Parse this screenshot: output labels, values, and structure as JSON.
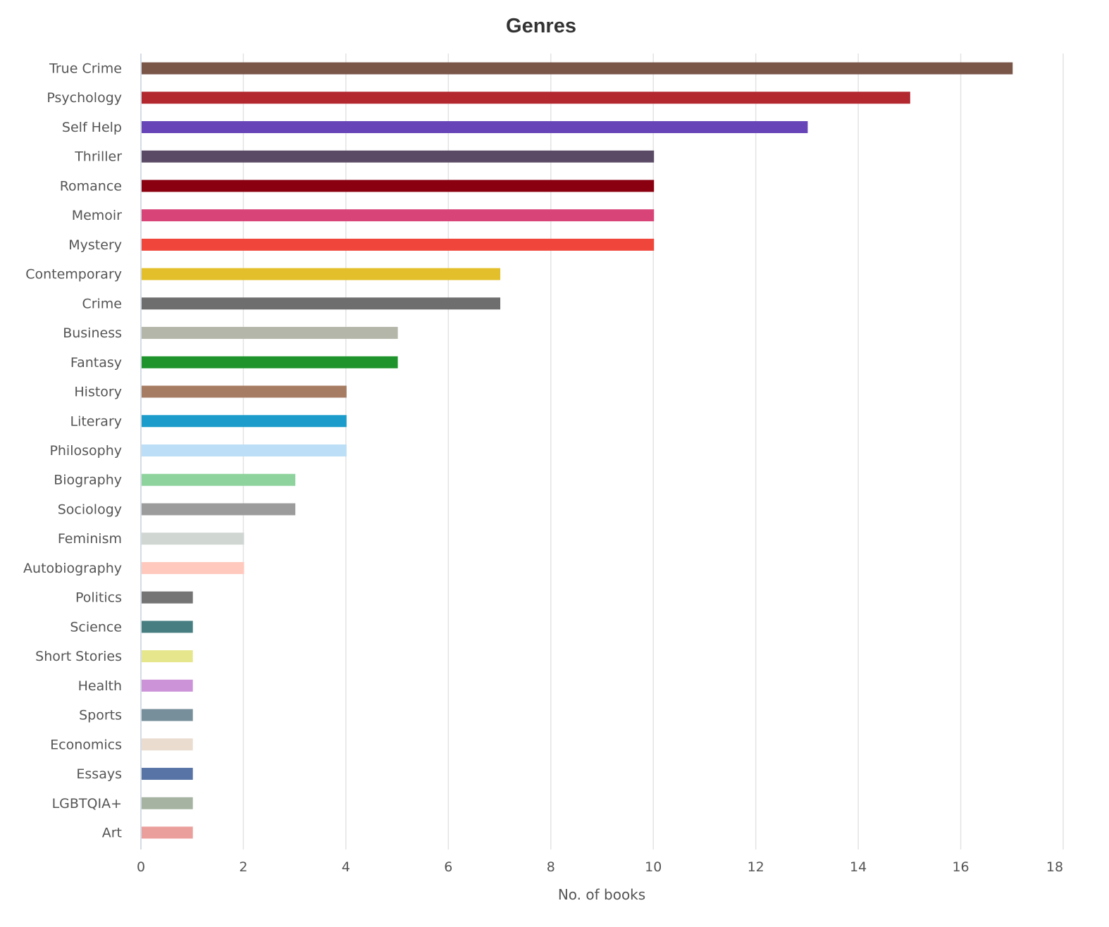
{
  "chart_data": {
    "type": "bar",
    "orientation": "horizontal",
    "title": "Genres",
    "xlabel": "No. of books",
    "ylabel": "",
    "xlim": [
      0,
      18
    ],
    "xticks": [
      "0",
      "2",
      "4",
      "6",
      "8",
      "10",
      "12",
      "14",
      "16",
      "18"
    ],
    "grid": true,
    "legend": "none",
    "categories": [
      "True Crime",
      "Psychology",
      "Self Help",
      "Thriller",
      "Romance",
      "Memoir",
      "Mystery",
      "Contemporary",
      "Crime",
      "Business",
      "Fantasy",
      "History",
      "Literary",
      "Philosophy",
      "Biography",
      "Sociology",
      "Feminism",
      "Autobiography",
      "Politics",
      "Science",
      "Short Stories",
      "Health",
      "Sports",
      "Economics",
      "Essays",
      "LGBTQIA+",
      "Art"
    ],
    "values": [
      17,
      15,
      13,
      10,
      10,
      10,
      10,
      7,
      7,
      5,
      5,
      4,
      4,
      4,
      3,
      3,
      2,
      2,
      1,
      1,
      1,
      1,
      1,
      1,
      1,
      1,
      1
    ],
    "colors": [
      "#7a5649",
      "#b3282f",
      "#6744b7",
      "#5b4a66",
      "#8a0010",
      "#d94478",
      "#f0453a",
      "#e3c02b",
      "#6e6e6e",
      "#b3b6a8",
      "#1f942c",
      "#a67c62",
      "#1c9cca",
      "#bcdef7",
      "#8ed39e",
      "#9c9c9c",
      "#d0d7d3",
      "#ffc9bd",
      "#747474",
      "#467e82",
      "#e6e68c",
      "#cd93d9",
      "#778f9a",
      "#eadcce",
      "#5873a6",
      "#a6b3a2",
      "#eb9f9d"
    ]
  }
}
